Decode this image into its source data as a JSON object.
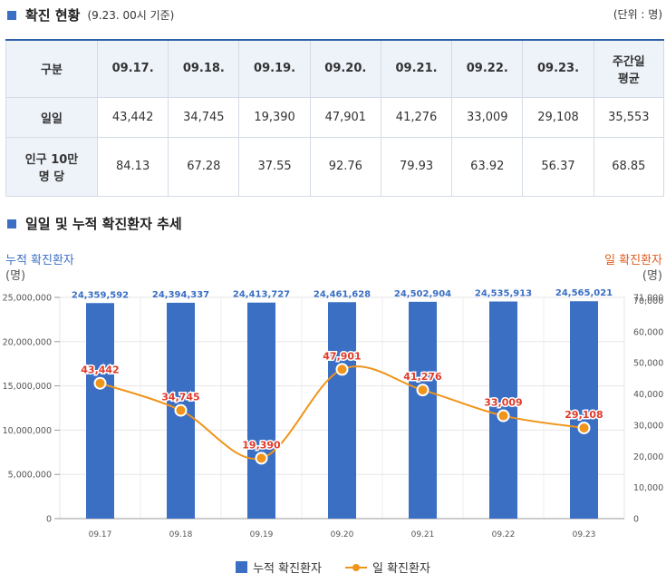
{
  "section1": {
    "title": "확진 현황",
    "sub": "(9.23. 00시 기준)",
    "unit": "(단위 : 명)"
  },
  "table": {
    "headers": [
      "구분",
      "09.17.",
      "09.18.",
      "09.19.",
      "09.20.",
      "09.21.",
      "09.22.",
      "09.23.",
      "주간일\n평균"
    ],
    "rows": [
      [
        "일일",
        "43,442",
        "34,745",
        "19,390",
        "47,901",
        "41,276",
        "33,009",
        "29,108",
        "35,553"
      ],
      [
        "인구 10만\n명 당",
        "84.13",
        "67.28",
        "37.55",
        "92.76",
        "79.93",
        "63.92",
        "56.37",
        "68.85"
      ]
    ]
  },
  "section2": {
    "title": "일일 및 누적 확진환자 추세"
  },
  "colors": {
    "bar": "#3a6fc4",
    "line": "#f0941a",
    "point_label": "#e03a2a",
    "bar_label": "#3a6fc4"
  },
  "chart_data": {
    "type": "bar",
    "categories": [
      "09.17",
      "09.18",
      "09.19",
      "09.20",
      "09.21",
      "09.22",
      "09.23"
    ],
    "series": [
      {
        "name": "누적 확진환자",
        "type": "bar",
        "axis": "left",
        "values": [
          24359592,
          24394337,
          24413727,
          24461628,
          24502904,
          24535913,
          24565021
        ],
        "labels": [
          "24,359,592",
          "24,394,337",
          "24,413,727",
          "24,461,628",
          "24,502,904",
          "24,535,913",
          "24,565,021"
        ]
      },
      {
        "name": "일 확진환자",
        "type": "line",
        "axis": "right",
        "values": [
          43442,
          34745,
          19390,
          47901,
          41276,
          33009,
          29108
        ],
        "labels": [
          "43,442",
          "34,745",
          "19,390",
          "47,901",
          "41,276",
          "33,009",
          "29,108"
        ]
      }
    ],
    "ylabel_left": "누적 확진환자",
    "ylabel_left_unit": "(명)",
    "ylabel_right": "일 확진환자",
    "ylabel_right_unit": "(명)",
    "ylim_left": [
      0,
      25000000
    ],
    "ylim_right": [
      0,
      71000
    ],
    "yticks_left": [
      "0",
      "5,000,000",
      "10,000,000",
      "15,000,000",
      "20,000,000",
      "25,000,000"
    ],
    "yticks_right": [
      "0",
      "10,000",
      "20,000",
      "30,000",
      "40,000",
      "50,000",
      "60,000",
      "70,000",
      "71,000"
    ],
    "yticks_right_values": [
      0,
      10000,
      20000,
      30000,
      40000,
      50000,
      60000,
      70000,
      71000
    ],
    "grid": true,
    "legend": "bottom-center"
  },
  "legend": {
    "bar_label": "누적 확진환자",
    "line_label": "일 확진환자"
  }
}
